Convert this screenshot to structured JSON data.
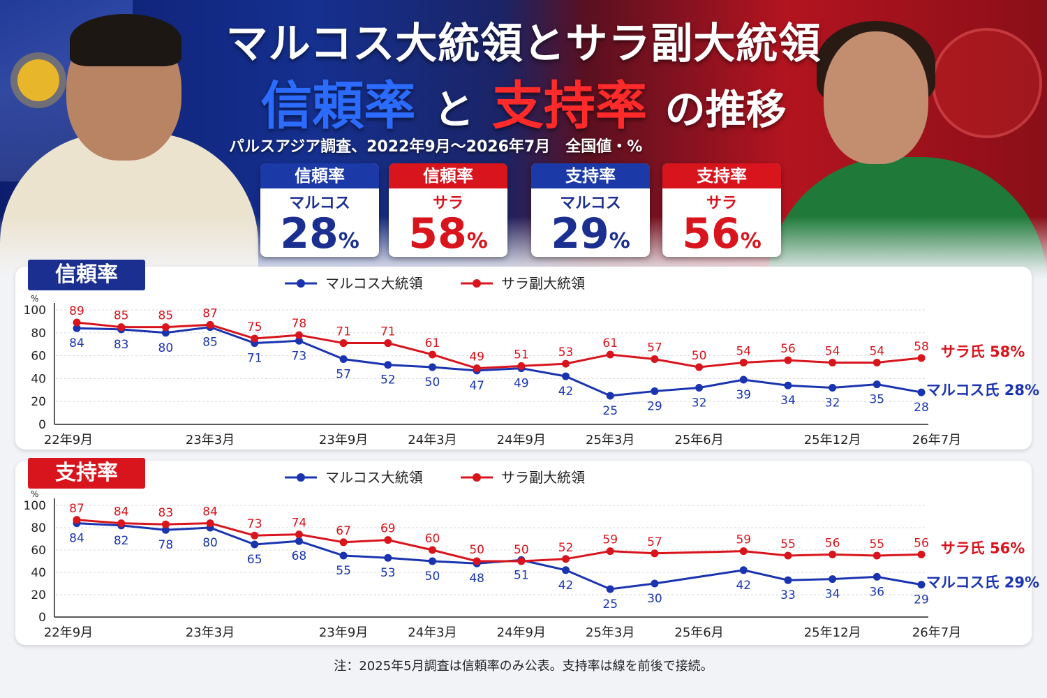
{
  "header": {
    "title_line1": "マルコス大統領とサラ副大統領",
    "title_trust": "信頼率",
    "title_and": "と",
    "title_support": "支持率",
    "title_suffix": "の推移",
    "subtitle": "パルスアジア調査、2022年9月～2026年7月　全国値・%"
  },
  "cards": [
    {
      "header": "信頼率",
      "name": "マルコス",
      "value": "28",
      "unit": "%",
      "color": "#1a2f8f"
    },
    {
      "header": "信頼率",
      "name": "サラ",
      "value": "58",
      "unit": "%",
      "color": "#d8141c"
    },
    {
      "header": "支持率",
      "name": "マルコス",
      "value": "29",
      "unit": "%",
      "color": "#1a2f8f"
    },
    {
      "header": "支持率",
      "name": "サラ",
      "value": "56",
      "unit": "%",
      "color": "#d8141c"
    }
  ],
  "note": "注：2025年5月調査は信頼率のみ公表。支持率は線を前後で接続。",
  "chart_data": [
    {
      "type": "line",
      "title": "信頼率",
      "ylabel": "%",
      "ylim": [
        0,
        100
      ],
      "yticks": [
        0,
        20,
        40,
        60,
        80,
        100
      ],
      "grid": true,
      "legend": "top-center",
      "x_tick_labels": [
        "22年9月",
        "23年3月",
        "23年9月",
        "24年3月",
        "24年9月",
        "25年3月",
        "25年6月",
        "25年12月",
        "26年7月"
      ],
      "series": [
        {
          "name": "マルコス大統領",
          "color": "#1a34b0",
          "end_label": "マルコス氏 28%",
          "values": [
            84,
            83,
            80,
            85,
            71,
            73,
            57,
            52,
            50,
            47,
            49,
            42,
            25,
            29,
            32,
            39,
            34,
            32,
            35,
            28
          ]
        },
        {
          "name": "サラ副大統領",
          "color": "#d8141c",
          "end_label": "サラ氏 58%",
          "values": [
            89,
            85,
            85,
            87,
            75,
            78,
            71,
            71,
            61,
            49,
            51,
            53,
            61,
            57,
            50,
            54,
            56,
            54,
            54,
            58
          ]
        }
      ]
    },
    {
      "type": "line",
      "title": "支持率",
      "ylabel": "%",
      "ylim": [
        0,
        100
      ],
      "yticks": [
        0,
        20,
        40,
        60,
        80,
        100
      ],
      "grid": true,
      "legend": "top-center",
      "x_tick_labels": [
        "22年9月",
        "23年3月",
        "23年9月",
        "24年3月",
        "24年9月",
        "25年3月",
        "25年6月",
        "25年12月",
        "26年7月"
      ],
      "series": [
        {
          "name": "マルコス大統領",
          "color": "#1a34b0",
          "end_label": "マルコス氏 29%",
          "values": [
            84,
            82,
            78,
            80,
            65,
            68,
            55,
            53,
            50,
            48,
            51,
            42,
            25,
            30,
            null,
            42,
            33,
            34,
            36,
            29
          ]
        },
        {
          "name": "サラ副大統領",
          "color": "#d8141c",
          "end_label": "サラ氏 56%",
          "values": [
            87,
            84,
            83,
            84,
            73,
            74,
            67,
            69,
            60,
            50,
            50,
            52,
            59,
            57,
            null,
            59,
            55,
            56,
            55,
            56
          ]
        }
      ]
    }
  ]
}
